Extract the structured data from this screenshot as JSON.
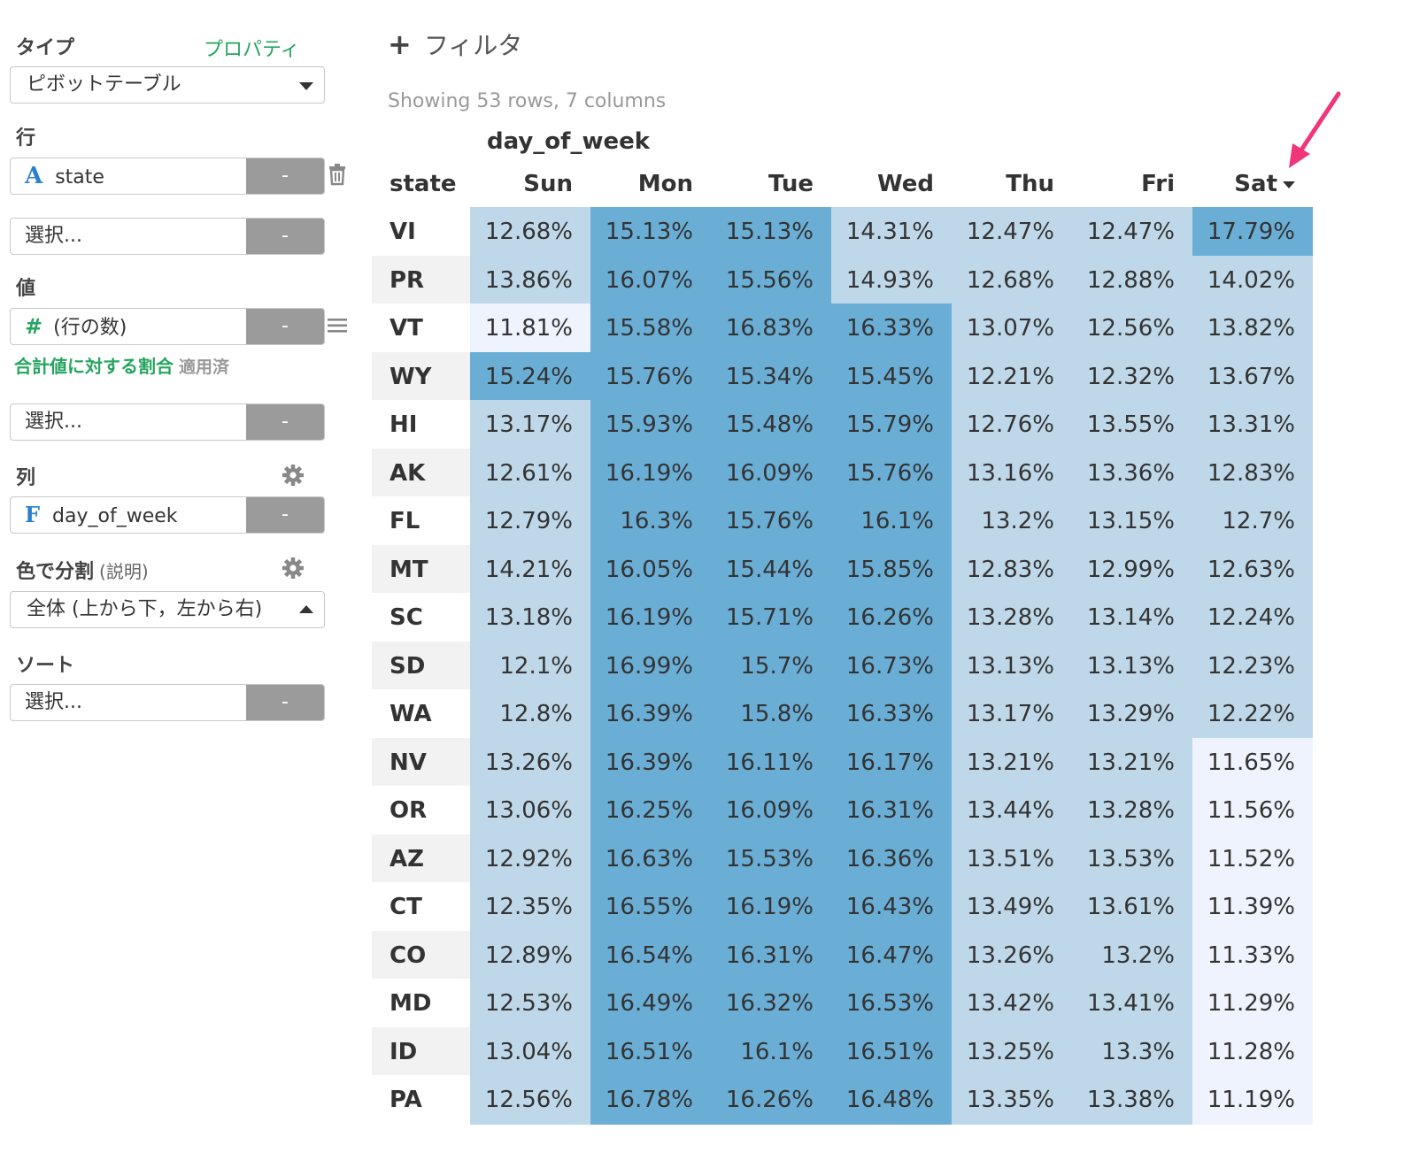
{
  "sidebar": {
    "type_label": "タイプ",
    "properties_link": "プロパティ",
    "type_value": "ピボットテーブル",
    "rows_label": "行",
    "rows_field": "state",
    "rows_select_placeholder": "選択...",
    "values_label": "値",
    "values_field": "(行の数)",
    "values_note": "合計値に対する割合",
    "values_note_status": "適用済",
    "values_select_placeholder": "選択...",
    "columns_label": "列",
    "columns_field": "day_of_week",
    "color_label": "色で分割",
    "color_help": "(説明)",
    "color_value": "全体 (上から下，左から右)",
    "sort_label": "ソート",
    "sort_select_placeholder": "選択...",
    "minus": "-"
  },
  "main": {
    "filter_label": "フィルタ",
    "rows_info": "Showing 53 rows, 7 columns",
    "column_header": "day_of_week",
    "row_header": "state",
    "days": [
      "Sun",
      "Mon",
      "Tue",
      "Wed",
      "Thu",
      "Fri",
      "Sat"
    ]
  },
  "colors": {
    "heat_dark": "#6aaed6",
    "heat_mid": "#bfd8e9",
    "heat_light": "#eef3fd",
    "arrow": "#f0357a"
  },
  "table": {
    "rows": [
      {
        "state": "VI",
        "values": [
          "12.68%",
          "15.13%",
          "15.13%",
          "14.31%",
          "12.47%",
          "12.47%",
          "17.79%"
        ],
        "levels": [
          1,
          2,
          2,
          1,
          1,
          1,
          2
        ]
      },
      {
        "state": "PR",
        "values": [
          "13.86%",
          "16.07%",
          "15.56%",
          "14.93%",
          "12.68%",
          "12.88%",
          "14.02%"
        ],
        "levels": [
          1,
          2,
          2,
          1,
          1,
          1,
          1
        ]
      },
      {
        "state": "VT",
        "values": [
          "11.81%",
          "15.58%",
          "16.83%",
          "16.33%",
          "13.07%",
          "12.56%",
          "13.82%"
        ],
        "levels": [
          0,
          2,
          2,
          2,
          1,
          1,
          1
        ]
      },
      {
        "state": "WY",
        "values": [
          "15.24%",
          "15.76%",
          "15.34%",
          "15.45%",
          "12.21%",
          "12.32%",
          "13.67%"
        ],
        "levels": [
          2,
          2,
          2,
          2,
          1,
          1,
          1
        ]
      },
      {
        "state": "HI",
        "values": [
          "13.17%",
          "15.93%",
          "15.48%",
          "15.79%",
          "12.76%",
          "13.55%",
          "13.31%"
        ],
        "levels": [
          1,
          2,
          2,
          2,
          1,
          1,
          1
        ]
      },
      {
        "state": "AK",
        "values": [
          "12.61%",
          "16.19%",
          "16.09%",
          "15.76%",
          "13.16%",
          "13.36%",
          "12.83%"
        ],
        "levels": [
          1,
          2,
          2,
          2,
          1,
          1,
          1
        ]
      },
      {
        "state": "FL",
        "values": [
          "12.79%",
          "16.3%",
          "15.76%",
          "16.1%",
          "13.2%",
          "13.15%",
          "12.7%"
        ],
        "levels": [
          1,
          2,
          2,
          2,
          1,
          1,
          1
        ]
      },
      {
        "state": "MT",
        "values": [
          "14.21%",
          "16.05%",
          "15.44%",
          "15.85%",
          "12.83%",
          "12.99%",
          "12.63%"
        ],
        "levels": [
          1,
          2,
          2,
          2,
          1,
          1,
          1
        ]
      },
      {
        "state": "SC",
        "values": [
          "13.18%",
          "16.19%",
          "15.71%",
          "16.26%",
          "13.28%",
          "13.14%",
          "12.24%"
        ],
        "levels": [
          1,
          2,
          2,
          2,
          1,
          1,
          1
        ]
      },
      {
        "state": "SD",
        "values": [
          "12.1%",
          "16.99%",
          "15.7%",
          "16.73%",
          "13.13%",
          "13.13%",
          "12.23%"
        ],
        "levels": [
          1,
          2,
          2,
          2,
          1,
          1,
          1
        ]
      },
      {
        "state": "WA",
        "values": [
          "12.8%",
          "16.39%",
          "15.8%",
          "16.33%",
          "13.17%",
          "13.29%",
          "12.22%"
        ],
        "levels": [
          1,
          2,
          2,
          2,
          1,
          1,
          1
        ]
      },
      {
        "state": "NV",
        "values": [
          "13.26%",
          "16.39%",
          "16.11%",
          "16.17%",
          "13.21%",
          "13.21%",
          "11.65%"
        ],
        "levels": [
          1,
          2,
          2,
          2,
          1,
          1,
          0
        ]
      },
      {
        "state": "OR",
        "values": [
          "13.06%",
          "16.25%",
          "16.09%",
          "16.31%",
          "13.44%",
          "13.28%",
          "11.56%"
        ],
        "levels": [
          1,
          2,
          2,
          2,
          1,
          1,
          0
        ]
      },
      {
        "state": "AZ",
        "values": [
          "12.92%",
          "16.63%",
          "15.53%",
          "16.36%",
          "13.51%",
          "13.53%",
          "11.52%"
        ],
        "levels": [
          1,
          2,
          2,
          2,
          1,
          1,
          0
        ]
      },
      {
        "state": "CT",
        "values": [
          "12.35%",
          "16.55%",
          "16.19%",
          "16.43%",
          "13.49%",
          "13.61%",
          "11.39%"
        ],
        "levels": [
          1,
          2,
          2,
          2,
          1,
          1,
          0
        ]
      },
      {
        "state": "CO",
        "values": [
          "12.89%",
          "16.54%",
          "16.31%",
          "16.47%",
          "13.26%",
          "13.2%",
          "11.33%"
        ],
        "levels": [
          1,
          2,
          2,
          2,
          1,
          1,
          0
        ]
      },
      {
        "state": "MD",
        "values": [
          "12.53%",
          "16.49%",
          "16.32%",
          "16.53%",
          "13.42%",
          "13.41%",
          "11.29%"
        ],
        "levels": [
          1,
          2,
          2,
          2,
          1,
          1,
          0
        ]
      },
      {
        "state": "ID",
        "values": [
          "13.04%",
          "16.51%",
          "16.1%",
          "16.51%",
          "13.25%",
          "13.3%",
          "11.28%"
        ],
        "levels": [
          1,
          2,
          2,
          2,
          1,
          1,
          0
        ]
      },
      {
        "state": "PA",
        "values": [
          "12.56%",
          "16.78%",
          "16.26%",
          "16.48%",
          "13.35%",
          "13.38%",
          "11.19%"
        ],
        "levels": [
          1,
          2,
          2,
          2,
          1,
          1,
          0
        ]
      }
    ]
  }
}
